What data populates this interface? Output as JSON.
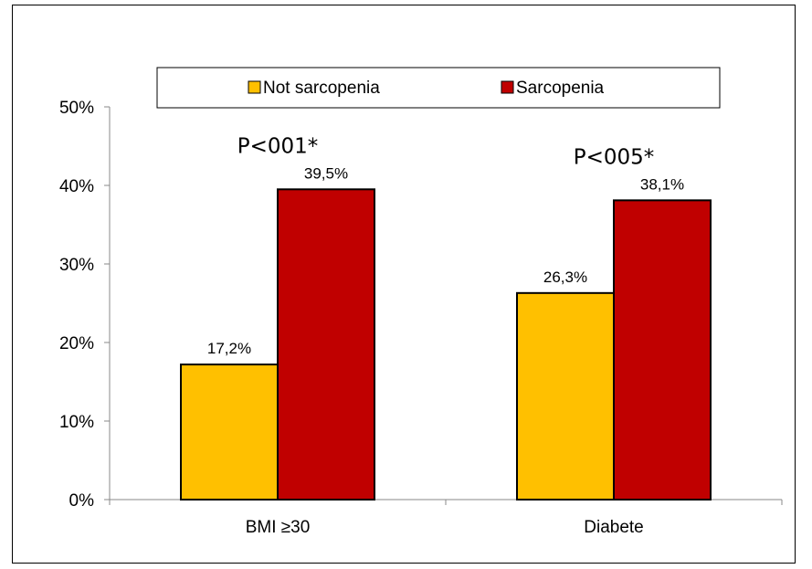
{
  "chart_data": {
    "type": "bar",
    "categories": [
      "BMI ≥30",
      "Diabete"
    ],
    "series": [
      {
        "name": "Not sarcopenia",
        "values": [
          17.2,
          26.3
        ],
        "labels": [
          "17,2%",
          "26,3%"
        ],
        "color": "#FFC000"
      },
      {
        "name": "Sarcopenia",
        "values": [
          39.5,
          38.1
        ],
        "labels": [
          "39,5%",
          "38,1%"
        ],
        "color": "#C00000"
      }
    ],
    "annotations": [
      "P<001*",
      "P<005*"
    ],
    "y_ticks": [
      "0%",
      "10%",
      "20%",
      "30%",
      "40%",
      "50%"
    ],
    "ylim": [
      0,
      50
    ],
    "legend_position": "top",
    "grid": false,
    "bar_outline_color": "#000000"
  }
}
